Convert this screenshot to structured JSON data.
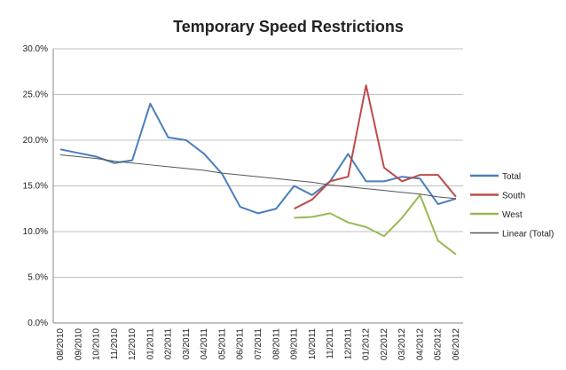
{
  "chart_data": {
    "type": "line",
    "title": "Temporary Speed Restrictions",
    "categories": [
      "08/2010",
      "09/2010",
      "10/2010",
      "11/2010",
      "12/2010",
      "01/2011",
      "02/2011",
      "03/2011",
      "04/2011",
      "05/2011",
      "06/2011",
      "07/2011",
      "08/2011",
      "09/2011",
      "10/2011",
      "11/2011",
      "12/2011",
      "01/2012",
      "02/2012",
      "03/2012",
      "04/2012",
      "05/2012",
      "06/2012"
    ],
    "series": [
      {
        "name": "Total",
        "color": "#4a7ebb",
        "width": 2,
        "values": [
          19.0,
          18.6,
          18.2,
          17.5,
          17.8,
          24.0,
          20.3,
          20.0,
          18.5,
          16.3,
          12.7,
          12.0,
          12.5,
          15.0,
          14.0,
          15.5,
          18.5,
          15.5,
          15.5,
          16.0,
          15.8,
          13.0,
          13.6
        ]
      },
      {
        "name": "South",
        "color": "#be4b48",
        "width": 2,
        "values": [
          null,
          null,
          null,
          null,
          null,
          null,
          null,
          null,
          null,
          null,
          null,
          null,
          null,
          12.5,
          13.5,
          15.5,
          16.0,
          26.0,
          17.0,
          15.5,
          16.2,
          16.2,
          13.8
        ]
      },
      {
        "name": "West",
        "color": "#98b954",
        "width": 2,
        "values": [
          null,
          null,
          null,
          null,
          null,
          null,
          null,
          null,
          null,
          null,
          null,
          null,
          null,
          11.5,
          11.6,
          12.0,
          11.0,
          10.5,
          9.5,
          11.5,
          14.0,
          9.0,
          7.5
        ]
      },
      {
        "name": "Linear (Total)",
        "color": "#555555",
        "width": 1,
        "values": [
          18.4,
          18.2,
          18.0,
          17.7,
          17.5,
          17.3,
          17.1,
          16.9,
          16.7,
          16.4,
          16.2,
          16.0,
          15.8,
          15.6,
          15.4,
          15.1,
          14.9,
          14.7,
          14.5,
          14.3,
          14.1,
          13.8,
          13.6
        ]
      }
    ],
    "ylim": [
      0,
      30
    ],
    "yticks": [
      {
        "value": 0,
        "label": "0.0%"
      },
      {
        "value": 5,
        "label": "5.0%"
      },
      {
        "value": 10,
        "label": "10.0%"
      },
      {
        "value": 15,
        "label": "15.0%"
      },
      {
        "value": 20,
        "label": "20.0%"
      },
      {
        "value": 25,
        "label": "25.0%"
      },
      {
        "value": 30,
        "label": "30.0%"
      }
    ],
    "grid": true,
    "legend": "right"
  }
}
